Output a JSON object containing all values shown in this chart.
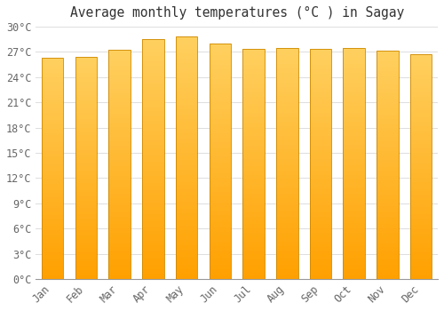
{
  "title": "Average monthly temperatures (°C ) in Sagay",
  "months": [
    "Jan",
    "Feb",
    "Mar",
    "Apr",
    "May",
    "Jun",
    "Jul",
    "Aug",
    "Sep",
    "Oct",
    "Nov",
    "Dec"
  ],
  "temperatures": [
    26.3,
    26.4,
    27.3,
    28.5,
    28.8,
    28.0,
    27.4,
    27.5,
    27.4,
    27.5,
    27.2,
    26.7
  ],
  "bar_color_light": "#FFD060",
  "bar_color_dark": "#FFA000",
  "bar_edge_color": "#CC8800",
  "background_color": "#FFFFFF",
  "plot_bg_color": "#FFFFFF",
  "grid_color": "#DDDDDD",
  "text_color": "#666666",
  "title_color": "#333333",
  "ylim": [
    0,
    30
  ],
  "ytick_step": 3,
  "title_fontsize": 10.5,
  "tick_fontsize": 8.5,
  "bar_width": 0.65
}
